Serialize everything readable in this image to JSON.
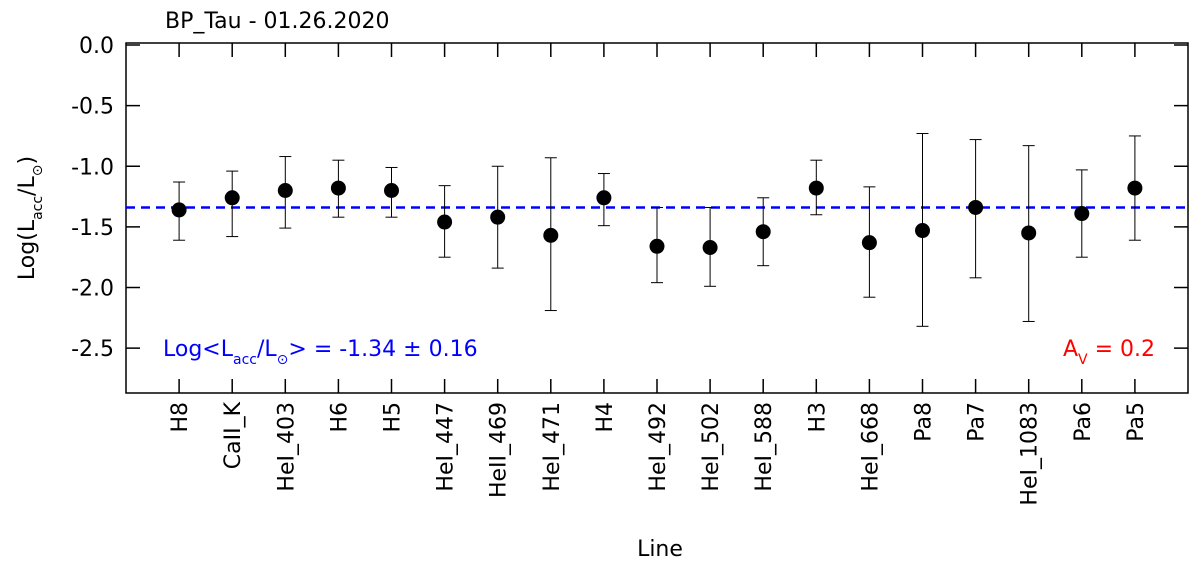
{
  "chart_data": {
    "type": "errorbar",
    "title": "BP_Tau - 01.26.2020",
    "xlabel": "Line",
    "ylabel_parts": [
      "Log(L",
      "acc",
      "/L",
      "⊙",
      ")"
    ],
    "categories": [
      "H8",
      "CaII_K",
      "HeI_403",
      "H6",
      "H5",
      "HeI_447",
      "HeII_469",
      "HeI_471",
      "H4",
      "HeI_492",
      "HeI_502",
      "HeI_588",
      "H3",
      "HeI_668",
      "Pa8",
      "Pa7",
      "HeI_1083",
      "Pa6",
      "Pa5"
    ],
    "values": [
      -1.36,
      -1.26,
      -1.2,
      -1.18,
      -1.2,
      -1.46,
      -1.42,
      -1.57,
      -1.26,
      -1.66,
      -1.67,
      -1.54,
      -1.18,
      -1.63,
      -1.53,
      -1.34,
      -1.55,
      -1.39,
      -1.18
    ],
    "lower": [
      -1.61,
      -1.58,
      -1.51,
      -1.42,
      -1.42,
      -1.75,
      -1.84,
      -2.19,
      -1.49,
      -1.96,
      -1.99,
      -1.82,
      -1.4,
      -2.08,
      -2.32,
      -1.92,
      -2.28,
      -1.75,
      -1.61
    ],
    "upper": [
      -1.13,
      -1.04,
      -0.92,
      -0.95,
      -1.01,
      -1.16,
      -1.0,
      -0.93,
      -1.06,
      -1.34,
      -1.34,
      -1.26,
      -0.95,
      -1.17,
      -0.73,
      -0.78,
      -0.83,
      -1.03,
      -0.75
    ],
    "color": "#000000",
    "mean_line": -1.34,
    "mean_color": "#0000ff",
    "mean_annotation_parts": [
      "Log<L",
      "acc",
      "/L",
      "⊙",
      "> = -1.34 ± 0.16"
    ],
    "av_annotation_parts": [
      "A",
      "V",
      " =  0.2"
    ],
    "av_color": "#ff0000",
    "ylim": [
      -2.87,
      0.0
    ],
    "yticks": [
      {
        "value": 0,
        "label": "0.0"
      },
      -0.5,
      {
        "value": -1,
        "label": "-1.0"
      },
      -1.5,
      {
        "value": -2,
        "label": "-2.0"
      },
      -2.5
    ]
  }
}
